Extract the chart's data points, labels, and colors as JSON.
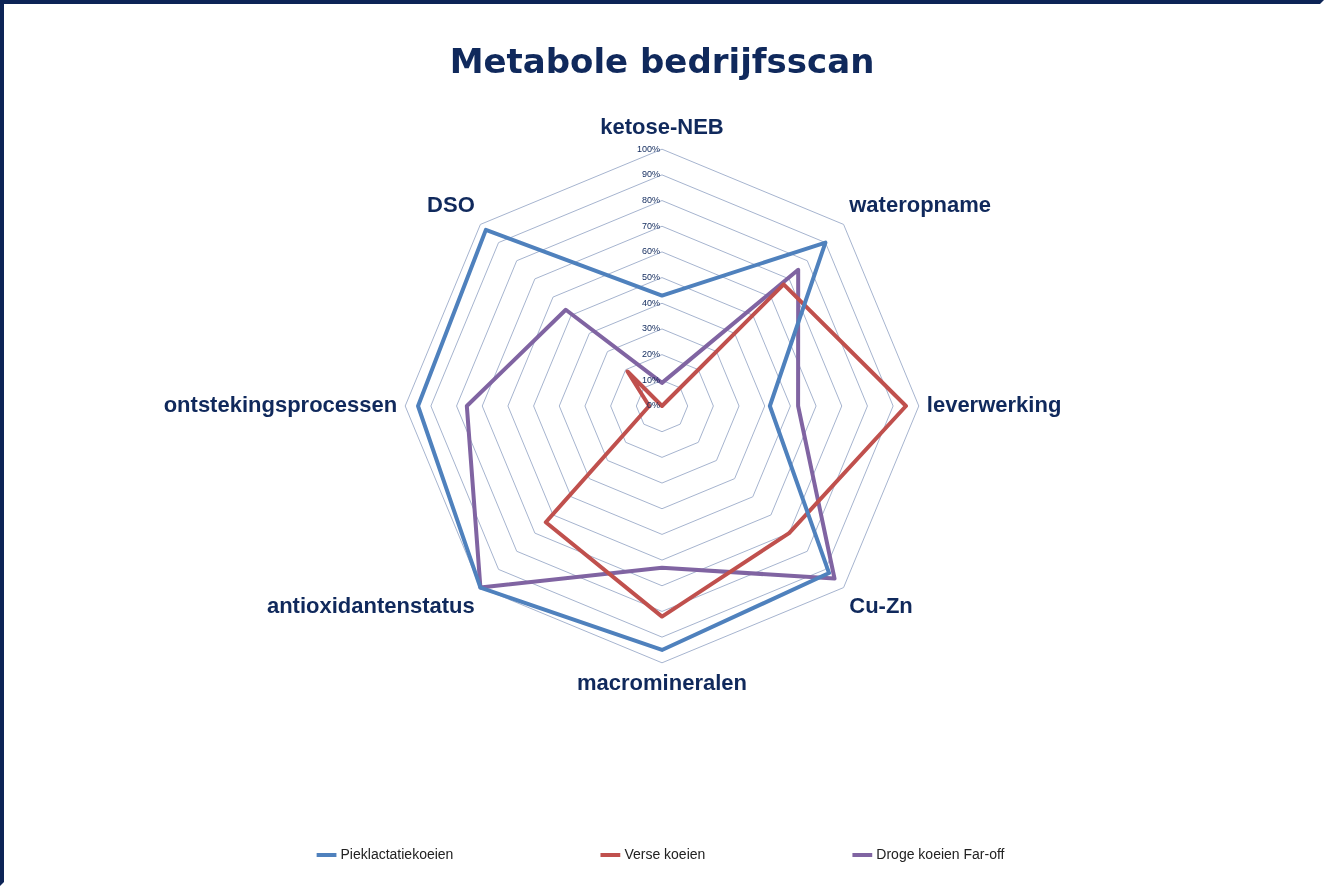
{
  "chart_data": {
    "type": "radar",
    "title": "Metabole bedrijfsscan",
    "categories": [
      "ketose-NEB",
      "wateropname",
      "leverwerking",
      "Cu-Zn",
      "macromineralen",
      "antioxidantenstatus",
      "ontstekingsprocessen",
      "DSO"
    ],
    "series": [
      {
        "name": "Pieklactatiekoeien",
        "color": "#4f81bd",
        "values": [
          43,
          90,
          42,
          92,
          95,
          100,
          95,
          97
        ]
      },
      {
        "name": "Verse koeien",
        "color": "#c0504d",
        "values": [
          0,
          67,
          95,
          70,
          82,
          64,
          5,
          19
        ]
      },
      {
        "name": "Droge koeien Far-off",
        "color": "#8064a2",
        "values": [
          9,
          75,
          53,
          95,
          63,
          100,
          76,
          53
        ]
      }
    ],
    "ylim": [
      0,
      100
    ],
    "yticks": [
      {
        "value": 0,
        "label": "0%"
      },
      {
        "value": 10,
        "label": "10%"
      },
      {
        "value": 20,
        "label": "20%"
      },
      {
        "value": 30,
        "label": "30%"
      },
      {
        "value": 40,
        "label": "40%"
      },
      {
        "value": 50,
        "label": "50%"
      },
      {
        "value": 60,
        "label": "60%"
      },
      {
        "value": 70,
        "label": "70%"
      },
      {
        "value": 80,
        "label": "80%"
      },
      {
        "value": 90,
        "label": "90%"
      },
      {
        "value": 100,
        "label": "100%"
      }
    ],
    "grid": true,
    "legend": "bottom",
    "marker": "none",
    "line_style": "solid"
  }
}
